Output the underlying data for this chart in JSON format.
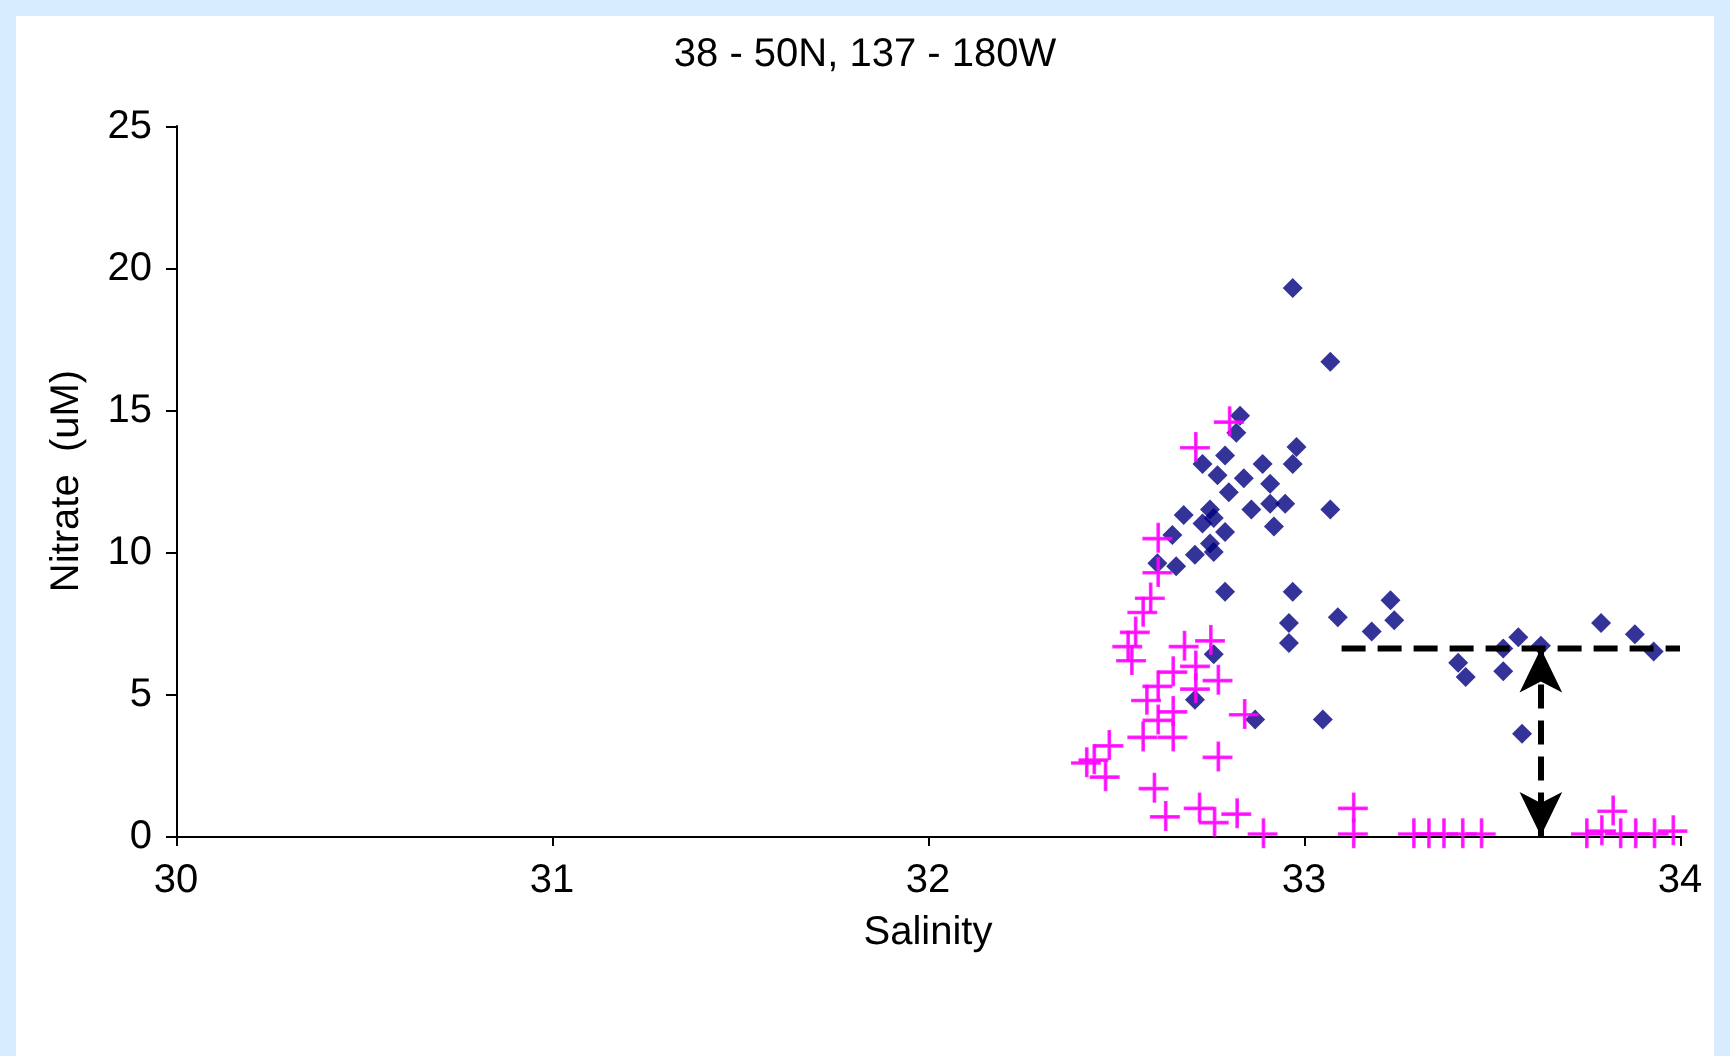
{
  "chart_data": {
    "type": "scatter",
    "title": "38 - 50N, 137 - 180W",
    "xlabel": "Salinity",
    "ylabel": "Nitrate  (uM)",
    "xlim": [
      30,
      34
    ],
    "xticks": [
      30,
      31,
      32,
      33,
      34
    ],
    "ylim": [
      0,
      25
    ],
    "yticks": [
      0,
      5,
      10,
      15,
      20,
      25
    ],
    "grid": false,
    "series": [
      {
        "color": "#000080",
        "marker": "diamond",
        "x": [
          32.97,
          33.07,
          32.83,
          32.82,
          32.98,
          32.97,
          32.73,
          32.79,
          32.89,
          32.84,
          32.77,
          32.91,
          32.8,
          32.91,
          32.95,
          32.86,
          33.07,
          32.75,
          32.68,
          32.76,
          32.92,
          32.79,
          32.73,
          32.65,
          32.75,
          32.71,
          32.76,
          32.66,
          32.61,
          32.79,
          32.97,
          33.09,
          32.96,
          32.96,
          33.23,
          33.24,
          33.18,
          32.76,
          32.71,
          32.87,
          33.05,
          33.41,
          33.43,
          33.53,
          33.53,
          33.57,
          33.63,
          33.58,
          33.79,
          33.88,
          33.93
        ],
        "values": [
          19.3,
          16.7,
          14.8,
          14.2,
          13.7,
          13.1,
          13.1,
          13.4,
          13.1,
          12.6,
          12.7,
          12.4,
          12.1,
          11.7,
          11.7,
          11.5,
          11.5,
          11.5,
          11.3,
          11.2,
          10.9,
          10.7,
          11.0,
          10.6,
          10.3,
          9.9,
          10.0,
          9.5,
          9.6,
          8.6,
          8.6,
          7.7,
          7.5,
          6.8,
          8.3,
          7.6,
          7.2,
          6.4,
          4.8,
          4.1,
          4.1,
          6.1,
          5.6,
          6.6,
          5.8,
          7.0,
          6.7,
          3.6,
          7.5,
          7.1,
          6.5
        ]
      },
      {
        "color": "#ff00ff",
        "marker": "cross",
        "x": [
          32.8,
          32.71,
          32.61,
          32.61,
          32.59,
          32.57,
          32.55,
          32.53,
          32.54,
          32.68,
          32.75,
          32.71,
          32.65,
          32.77,
          32.61,
          32.71,
          32.58,
          32.65,
          32.61,
          32.57,
          32.65,
          32.84,
          32.48,
          32.44,
          32.42,
          32.47,
          32.77,
          32.6,
          32.63,
          32.72,
          32.82,
          32.76,
          32.89,
          33.13,
          33.13,
          33.29,
          33.33,
          33.37,
          33.42,
          33.47,
          33.75,
          33.79,
          33.84,
          33.88,
          33.93,
          33.98,
          33.82
        ],
        "values": [
          14.6,
          13.7,
          10.5,
          9.3,
          8.4,
          7.9,
          7.2,
          6.7,
          6.2,
          6.7,
          6.9,
          6.0,
          5.8,
          5.5,
          5.3,
          5.2,
          4.8,
          4.4,
          4.1,
          3.5,
          3.5,
          4.3,
          3.2,
          2.7,
          2.6,
          2.1,
          2.8,
          1.7,
          0.7,
          1.0,
          0.8,
          0.5,
          0.1,
          1.0,
          0.1,
          0.1,
          0.1,
          0.1,
          0.1,
          0.1,
          0.1,
          0.2,
          0.1,
          0.1,
          0.1,
          0.2,
          0.9
        ]
      },
      {
        "type": "line",
        "color": "#000000",
        "marker": "none",
        "line_style": "dashed",
        "x": [
          33.1,
          33.63,
          34
        ],
        "values": [
          6.6,
          6.6,
          6.6
        ]
      }
    ]
  }
}
